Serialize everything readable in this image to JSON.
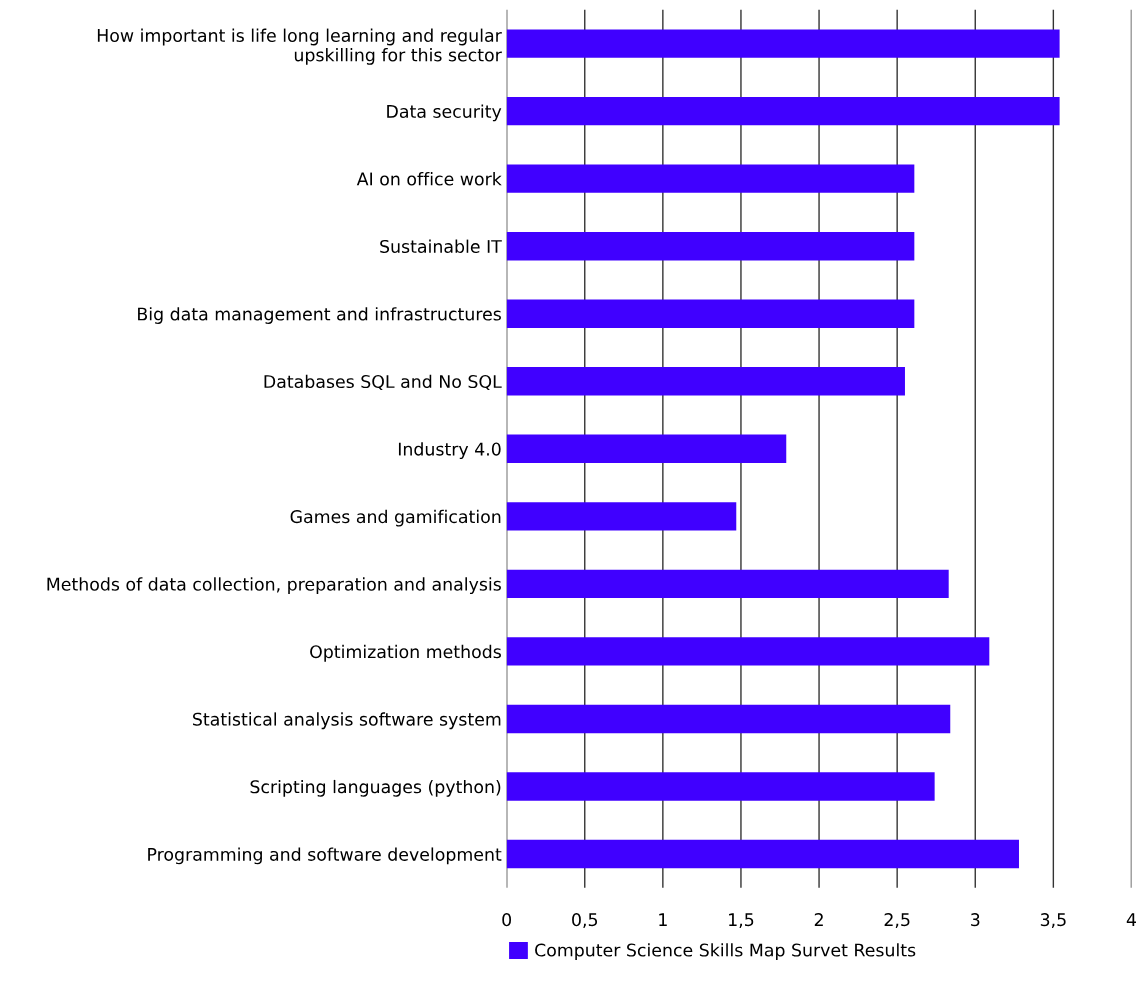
{
  "chart_data": {
    "type": "bar",
    "orientation": "horizontal",
    "categories": [
      "How important is life long learning and regular\nupskilling for this sector",
      "Data security",
      "AI on office work",
      "Sustainable IT",
      "Big data management and infrastructures",
      "Databases SQL and No SQL",
      "Industry 4.0",
      "Games and gamification",
      "Methods of data collection, preparation and analysis",
      "Optimization methods",
      "Statistical analysis software system",
      "Scripting languages (python)",
      "Programming and software development"
    ],
    "series": [
      {
        "name": "Computer Science Skills Map Survet Results",
        "color": "#4000ff",
        "values": [
          3.54,
          3.54,
          2.61,
          2.61,
          2.61,
          2.55,
          1.79,
          1.47,
          2.83,
          3.09,
          2.84,
          2.74,
          3.28
        ]
      }
    ],
    "xlim": [
      0,
      4
    ],
    "xticks": [
      0,
      {
        "value": 0.5,
        "label": "0,5"
      },
      1,
      {
        "value": 1.5,
        "label": "1,5"
      },
      2,
      {
        "value": 2.5,
        "label": "2,5"
      },
      3,
      {
        "value": 3.5,
        "label": "3,5"
      },
      4
    ],
    "grid": "x",
    "legend": "bottom"
  }
}
